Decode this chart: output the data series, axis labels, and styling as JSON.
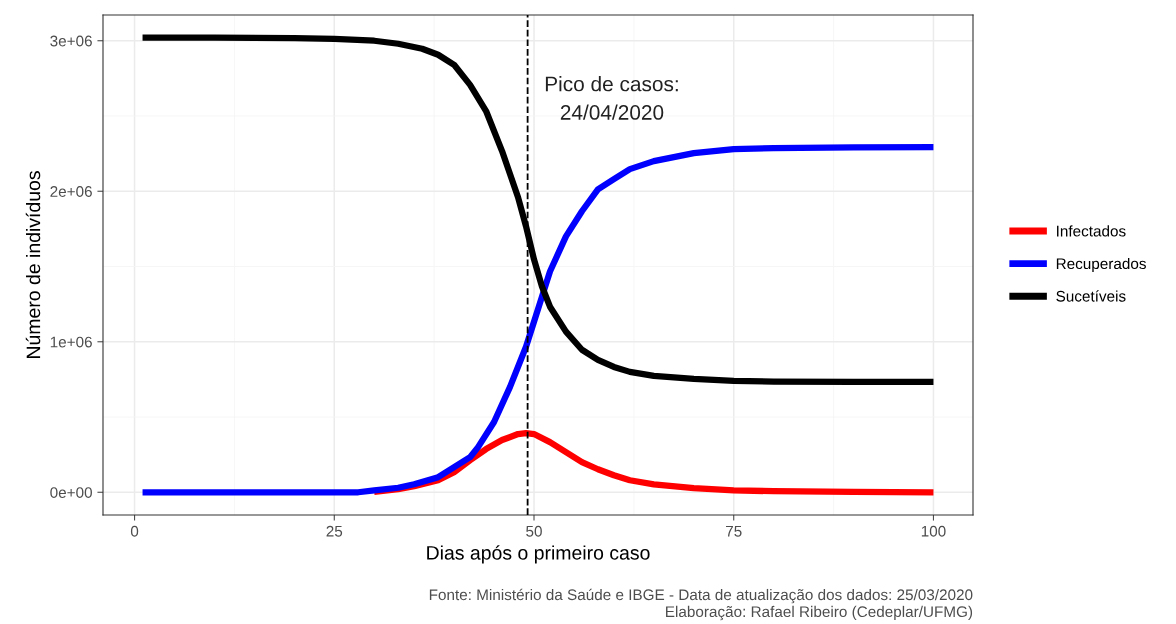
{
  "chart_data": {
    "type": "line",
    "xlabel": "Dias após o primeiro caso",
    "ylabel": "Número de indivíduos",
    "xlim": [
      -3.95,
      104.95
    ],
    "ylim": [
      -151000,
      3171000
    ],
    "xticks": [
      0,
      25,
      50,
      75,
      100
    ],
    "yticks": [
      {
        "value": 0,
        "label": "0e+00"
      },
      {
        "value": 1000000,
        "label": "1e+06"
      },
      {
        "value": 2000000,
        "label": "2e+06"
      },
      {
        "value": 3000000,
        "label": "3e+06"
      }
    ],
    "grid": true,
    "legend": "right",
    "line_style": "solid",
    "marker": "none",
    "series": [
      {
        "name": "Infectados",
        "color": "#ff0000",
        "x": [
          30,
          33,
          35,
          38,
          40,
          42,
          44,
          46,
          48,
          49,
          50,
          52,
          54,
          56,
          58,
          60,
          62,
          65,
          70,
          75,
          80,
          90,
          100
        ],
        "values": [
          3000,
          20000,
          40000,
          80000,
          133000,
          213000,
          287000,
          347000,
          387000,
          393000,
          387000,
          333000,
          267000,
          200000,
          153000,
          113000,
          80000,
          53000,
          27000,
          13000,
          7000,
          2000,
          0
        ]
      },
      {
        "name": "Recuperados",
        "color": "#0000ff",
        "x": [
          1,
          10,
          20,
          28,
          30,
          33,
          35,
          38,
          40,
          42,
          43,
          45,
          47,
          49,
          50,
          51,
          52,
          54,
          56,
          58,
          60,
          62,
          65,
          70,
          75,
          80,
          90,
          100
        ],
        "values": [
          0,
          0,
          0,
          0,
          13000,
          30000,
          53000,
          100000,
          167000,
          233000,
          300000,
          467000,
          700000,
          967000,
          1133000,
          1300000,
          1467000,
          1700000,
          1867000,
          2013000,
          2080000,
          2147000,
          2200000,
          2253000,
          2280000,
          2287000,
          2292000,
          2293000
        ]
      },
      {
        "name": "Sucetíveis",
        "color": "#000000",
        "x": [
          1,
          10,
          20,
          25,
          30,
          33,
          36,
          38,
          40,
          42,
          44,
          46,
          48,
          49,
          50,
          51,
          52,
          54,
          56,
          58,
          60,
          62,
          65,
          70,
          75,
          80,
          90,
          100
        ],
        "values": [
          3020000,
          3020000,
          3018000,
          3013000,
          3000000,
          2980000,
          2947000,
          2907000,
          2840000,
          2707000,
          2533000,
          2267000,
          1960000,
          1767000,
          1547000,
          1367000,
          1233000,
          1067000,
          947000,
          880000,
          833000,
          800000,
          773000,
          753000,
          740000,
          735000,
          733000,
          733000
        ]
      }
    ],
    "ref_lines": [
      {
        "axis": "x",
        "value": 49.2,
        "color": "#000000",
        "line_style": "dashed"
      }
    ],
    "annotations": [
      "Pico de casos:\n24/04/2020",
      "Fonte: Ministério da Saúde e IBGE - Data de atualização dos dados: 25/03/2020",
      "Elaboração: Rafael Ribeiro (Cedeplar/UFMG)"
    ]
  }
}
